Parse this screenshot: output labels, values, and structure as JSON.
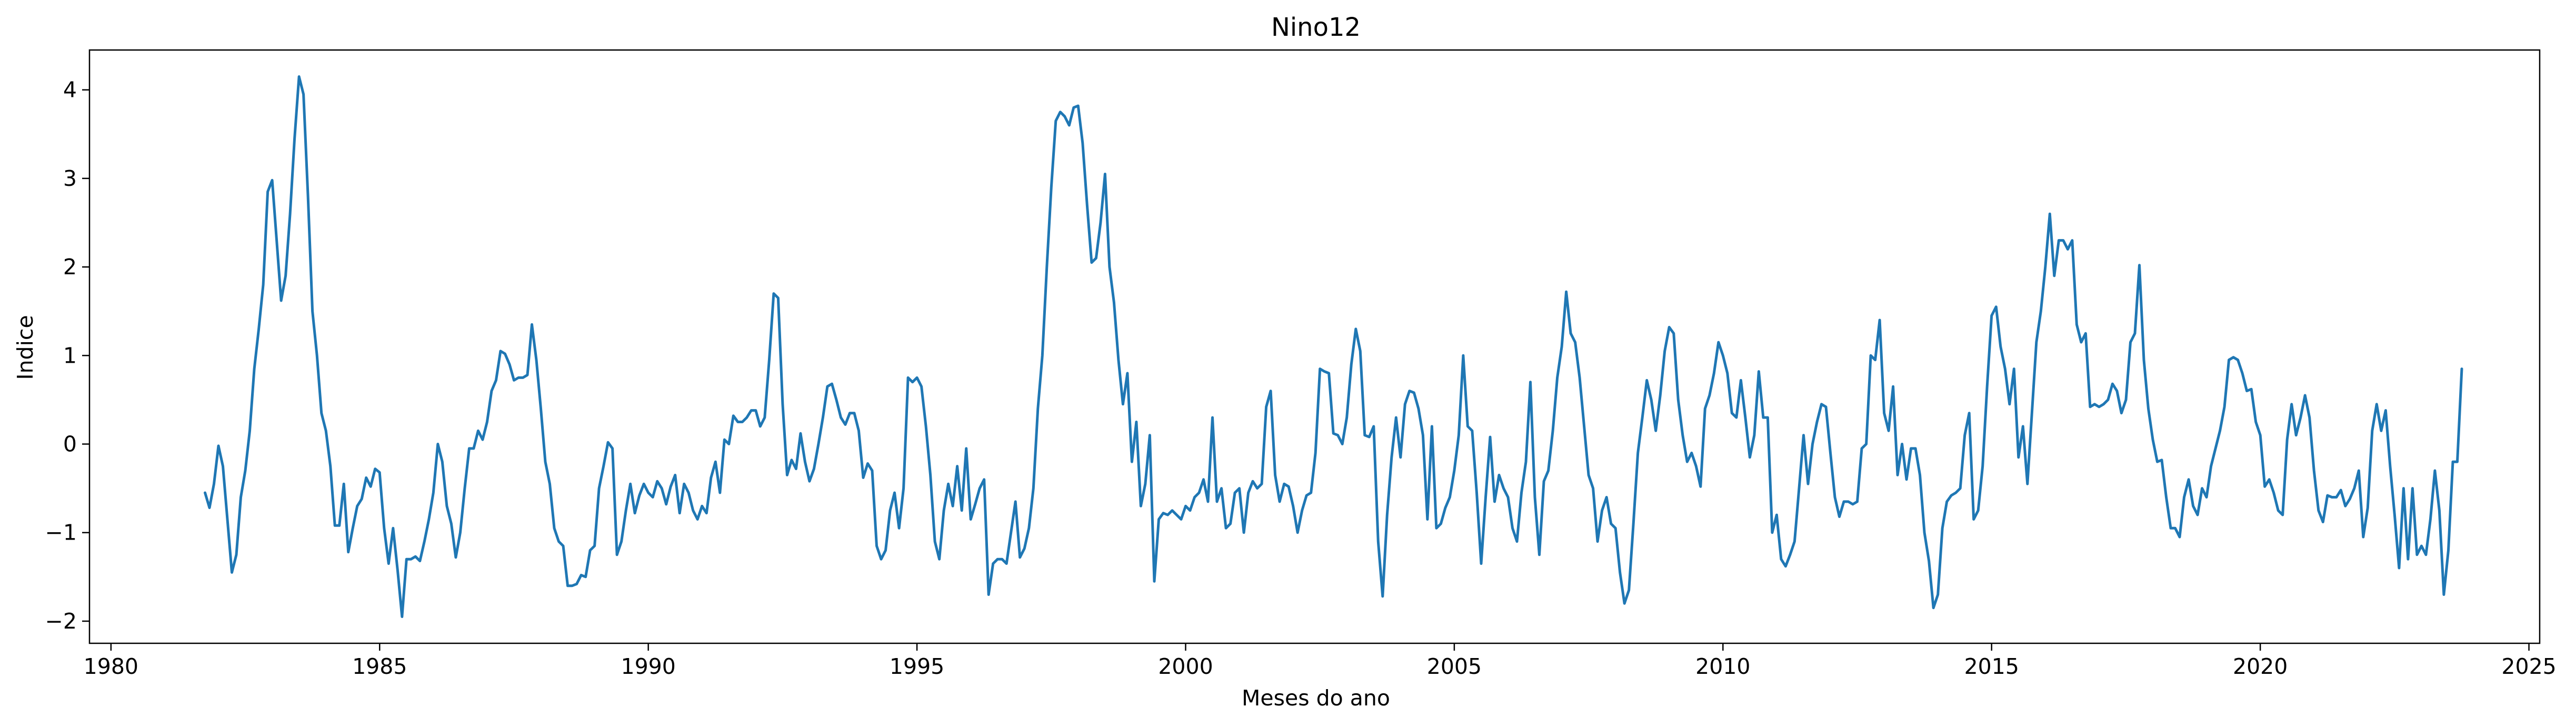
{
  "chart_data": {
    "type": "line",
    "title": "Nino12",
    "xlabel": "Meses do ano",
    "ylabel": "Indice",
    "xlim": [
      1979.6,
      2025.2
    ],
    "ylim": [
      -2.25,
      4.45
    ],
    "xticks": [
      1980,
      1985,
      1990,
      1995,
      2000,
      2005,
      2010,
      2015,
      2020,
      2025
    ],
    "yticks": [
      -2,
      -1,
      0,
      1,
      2,
      3,
      4
    ],
    "grid": false,
    "legend": "none",
    "line_color": "#1f77b4",
    "series": [
      {
        "x_start": 1981.75,
        "x_step": 0.0833333,
        "values": [
          -0.55,
          -0.72,
          -0.45,
          -0.02,
          -0.25,
          -0.85,
          -1.45,
          -1.25,
          -0.6,
          -0.3,
          0.15,
          0.85,
          1.3,
          1.8,
          2.85,
          2.98,
          2.3,
          1.62,
          1.9,
          2.6,
          3.45,
          4.15,
          3.95,
          2.8,
          1.5,
          1.0,
          0.35,
          0.15,
          -0.25,
          -0.92,
          -0.92,
          -0.45,
          -1.22,
          -0.95,
          -0.7,
          -0.62,
          -0.38,
          -0.48,
          -0.28,
          -0.32,
          -0.95,
          -1.35,
          -0.95,
          -1.42,
          -1.95,
          -1.3,
          -1.3,
          -1.27,
          -1.32,
          -1.1,
          -0.85,
          -0.55,
          0.0,
          -0.2,
          -0.7,
          -0.9,
          -1.28,
          -1.0,
          -0.5,
          -0.05,
          -0.05,
          0.15,
          0.05,
          0.25,
          0.6,
          0.72,
          1.05,
          1.02,
          0.9,
          0.72,
          0.75,
          0.75,
          0.78,
          1.35,
          0.95,
          0.4,
          -0.2,
          -0.45,
          -0.95,
          -1.1,
          -1.15,
          -1.6,
          -1.6,
          -1.58,
          -1.48,
          -1.5,
          -1.2,
          -1.15,
          -0.5,
          -0.25,
          0.02,
          -0.05,
          -1.25,
          -1.1,
          -0.75,
          -0.45,
          -0.78,
          -0.58,
          -0.45,
          -0.55,
          -0.6,
          -0.42,
          -0.5,
          -0.68,
          -0.48,
          -0.35,
          -0.78,
          -0.45,
          -0.55,
          -0.75,
          -0.85,
          -0.7,
          -0.78,
          -0.38,
          -0.2,
          -0.55,
          0.05,
          0.0,
          0.32,
          0.25,
          0.25,
          0.3,
          0.38,
          0.38,
          0.2,
          0.3,
          0.95,
          1.7,
          1.65,
          0.45,
          -0.35,
          -0.18,
          -0.28,
          0.12,
          -0.2,
          -0.42,
          -0.28,
          0.0,
          0.3,
          0.65,
          0.68,
          0.5,
          0.3,
          0.22,
          0.35,
          0.35,
          0.15,
          -0.38,
          -0.22,
          -0.3,
          -1.15,
          -1.3,
          -1.2,
          -0.75,
          -0.55,
          -0.95,
          -0.5,
          0.75,
          0.7,
          0.75,
          0.65,
          0.2,
          -0.35,
          -1.1,
          -1.3,
          -0.75,
          -0.45,
          -0.7,
          -0.25,
          -0.75,
          -0.05,
          -0.85,
          -0.68,
          -0.5,
          -0.4,
          -1.7,
          -1.35,
          -1.3,
          -1.3,
          -1.35,
          -1.0,
          -0.65,
          -1.28,
          -1.18,
          -0.95,
          -0.5,
          0.4,
          1.0,
          2.0,
          2.9,
          3.65,
          3.75,
          3.7,
          3.6,
          3.8,
          3.82,
          3.4,
          2.7,
          2.05,
          2.1,
          2.5,
          3.05,
          2.0,
          1.6,
          0.95,
          0.45,
          0.8,
          -0.2,
          0.25,
          -0.7,
          -0.45,
          0.1,
          -1.55,
          -0.85,
          -0.78,
          -0.8,
          -0.75,
          -0.8,
          -0.85,
          -0.7,
          -0.75,
          -0.6,
          -0.55,
          -0.4,
          -0.65,
          0.3,
          -0.65,
          -0.5,
          -0.95,
          -0.9,
          -0.55,
          -0.5,
          -1.0,
          -0.55,
          -0.42,
          -0.5,
          -0.45,
          0.42,
          0.6,
          -0.35,
          -0.65,
          -0.45,
          -0.48,
          -0.7,
          -1.0,
          -0.75,
          -0.58,
          -0.55,
          -0.1,
          0.85,
          0.82,
          0.8,
          0.12,
          0.1,
          0.0,
          0.3,
          0.9,
          1.3,
          1.05,
          0.1,
          0.08,
          0.2,
          -1.1,
          -1.72,
          -0.8,
          -0.15,
          0.3,
          -0.15,
          0.45,
          0.6,
          0.58,
          0.4,
          0.1,
          -0.85,
          0.2,
          -0.95,
          -0.9,
          -0.72,
          -0.6,
          -0.3,
          0.1,
          1.0,
          0.2,
          0.15,
          -0.55,
          -1.35,
          -0.6,
          0.08,
          -0.65,
          -0.35,
          -0.5,
          -0.6,
          -0.95,
          -1.1,
          -0.55,
          -0.2,
          0.7,
          -0.6,
          -1.25,
          -0.42,
          -0.3,
          0.15,
          0.75,
          1.1,
          1.72,
          1.25,
          1.15,
          0.75,
          0.2,
          -0.35,
          -0.5,
          -1.1,
          -0.75,
          -0.6,
          -0.9,
          -0.95,
          -1.45,
          -1.8,
          -1.65,
          -0.9,
          -0.1,
          0.3,
          0.72,
          0.5,
          0.15,
          0.55,
          1.05,
          1.32,
          1.25,
          0.5,
          0.1,
          -0.2,
          -0.1,
          -0.25,
          -0.48,
          0.4,
          0.55,
          0.8,
          1.15,
          1.0,
          0.8,
          0.35,
          0.3,
          0.72,
          0.3,
          -0.15,
          0.1,
          0.82,
          0.3,
          0.3,
          -1.0,
          -0.8,
          -1.3,
          -1.38,
          -1.25,
          -1.1,
          -0.5,
          0.1,
          -0.45,
          0.0,
          0.25,
          0.45,
          0.42,
          -0.1,
          -0.6,
          -0.82,
          -0.65,
          -0.65,
          -0.68,
          -0.65,
          -0.05,
          0.0,
          1.0,
          0.95,
          1.4,
          0.35,
          0.15,
          0.65,
          -0.35,
          0.0,
          -0.4,
          -0.05,
          -0.05,
          -0.35,
          -1.0,
          -1.32,
          -1.85,
          -1.7,
          -0.95,
          -0.65,
          -0.58,
          -0.55,
          -0.5,
          0.1,
          0.35,
          -0.85,
          -0.75,
          -0.25,
          0.65,
          1.45,
          1.55,
          1.1,
          0.85,
          0.45,
          0.85,
          -0.15,
          0.2,
          -0.45,
          0.35,
          1.15,
          1.5,
          2.0,
          2.6,
          1.9,
          2.3,
          2.3,
          2.2,
          2.3,
          1.35,
          1.15,
          1.25,
          0.42,
          0.45,
          0.42,
          0.45,
          0.5,
          0.68,
          0.6,
          0.35,
          0.5,
          1.15,
          1.25,
          2.02,
          0.95,
          0.4,
          0.05,
          -0.2,
          -0.18,
          -0.6,
          -0.95,
          -0.95,
          -1.05,
          -0.6,
          -0.4,
          -0.7,
          -0.8,
          -0.5,
          -0.6,
          -0.25,
          -0.05,
          0.15,
          0.42,
          0.95,
          0.98,
          0.95,
          0.8,
          0.6,
          0.62,
          0.25,
          0.1,
          -0.48,
          -0.4,
          -0.55,
          -0.75,
          -0.8,
          0.05,
          0.45,
          0.1,
          0.3,
          0.55,
          0.3,
          -0.3,
          -0.75,
          -0.88,
          -0.58,
          -0.6,
          -0.6,
          -0.52,
          -0.7,
          -0.62,
          -0.5,
          -0.3,
          -1.05,
          -0.72,
          0.15,
          0.45,
          0.15,
          0.38,
          -0.25,
          -0.8,
          -1.4,
          -0.5,
          -1.3,
          -0.5,
          -1.25,
          -1.15,
          -1.25,
          -0.85,
          -0.3,
          -0.75,
          -1.7,
          -1.2,
          -0.2,
          -0.2,
          0.85
        ]
      }
    ]
  }
}
